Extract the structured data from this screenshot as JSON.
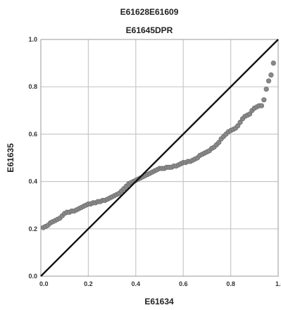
{
  "chart_data": {
    "type": "scatter",
    "title": "E61628E61609",
    "subtitle": "E61645DPR",
    "xlabel": "E61634",
    "ylabel": "E61635",
    "xlim": [
      0.0,
      1.0
    ],
    "ylim": [
      0.0,
      1.0
    ],
    "xticks": [
      "0.0",
      "0.2",
      "0.4",
      "0.6",
      "0.8",
      "1.0"
    ],
    "yticks": [
      "0.0",
      "0.2",
      "0.4",
      "0.6",
      "0.8",
      "1.0"
    ],
    "grid": true,
    "reference_line": {
      "from": [
        0.0,
        0.0
      ],
      "to": [
        1.0,
        1.0
      ]
    },
    "x": [
      0.01,
      0.02,
      0.03,
      0.04,
      0.05,
      0.06,
      0.07,
      0.08,
      0.09,
      0.1,
      0.11,
      0.12,
      0.13,
      0.14,
      0.15,
      0.16,
      0.17,
      0.18,
      0.19,
      0.2,
      0.21,
      0.22,
      0.23,
      0.24,
      0.25,
      0.26,
      0.27,
      0.28,
      0.29,
      0.3,
      0.31,
      0.32,
      0.33,
      0.34,
      0.35,
      0.36,
      0.37,
      0.38,
      0.39,
      0.4,
      0.41,
      0.42,
      0.43,
      0.44,
      0.45,
      0.46,
      0.47,
      0.48,
      0.49,
      0.5,
      0.51,
      0.52,
      0.53,
      0.54,
      0.55,
      0.56,
      0.57,
      0.58,
      0.59,
      0.6,
      0.61,
      0.62,
      0.63,
      0.64,
      0.65,
      0.66,
      0.67,
      0.68,
      0.69,
      0.7,
      0.71,
      0.72,
      0.73,
      0.74,
      0.75,
      0.76,
      0.77,
      0.78,
      0.79,
      0.8,
      0.81,
      0.82,
      0.83,
      0.84,
      0.85,
      0.86,
      0.87,
      0.88,
      0.89,
      0.9,
      0.91,
      0.92,
      0.93,
      0.94,
      0.95,
      0.96,
      0.97,
      0.98
    ],
    "y": [
      0.205,
      0.21,
      0.215,
      0.225,
      0.23,
      0.235,
      0.24,
      0.245,
      0.255,
      0.265,
      0.27,
      0.27,
      0.275,
      0.275,
      0.28,
      0.285,
      0.29,
      0.295,
      0.3,
      0.305,
      0.305,
      0.31,
      0.31,
      0.315,
      0.315,
      0.32,
      0.32,
      0.325,
      0.33,
      0.335,
      0.34,
      0.345,
      0.35,
      0.36,
      0.37,
      0.38,
      0.39,
      0.395,
      0.4,
      0.405,
      0.41,
      0.415,
      0.42,
      0.425,
      0.43,
      0.435,
      0.44,
      0.445,
      0.45,
      0.455,
      0.455,
      0.455,
      0.46,
      0.46,
      0.46,
      0.465,
      0.465,
      0.47,
      0.475,
      0.48,
      0.48,
      0.485,
      0.485,
      0.49,
      0.495,
      0.5,
      0.51,
      0.515,
      0.52,
      0.525,
      0.53,
      0.54,
      0.545,
      0.555,
      0.565,
      0.58,
      0.59,
      0.6,
      0.61,
      0.615,
      0.62,
      0.625,
      0.635,
      0.65,
      0.665,
      0.675,
      0.68,
      0.685,
      0.7,
      0.71,
      0.715,
      0.72,
      0.72,
      0.745,
      0.79,
      0.825,
      0.85,
      0.9
    ]
  },
  "colors": {
    "point_fill": "#888888",
    "point_stroke": "#666666",
    "grid": "#c8c8c8",
    "frame": "#9a9a9a",
    "reference_line": "#111111",
    "text": "#222222"
  }
}
